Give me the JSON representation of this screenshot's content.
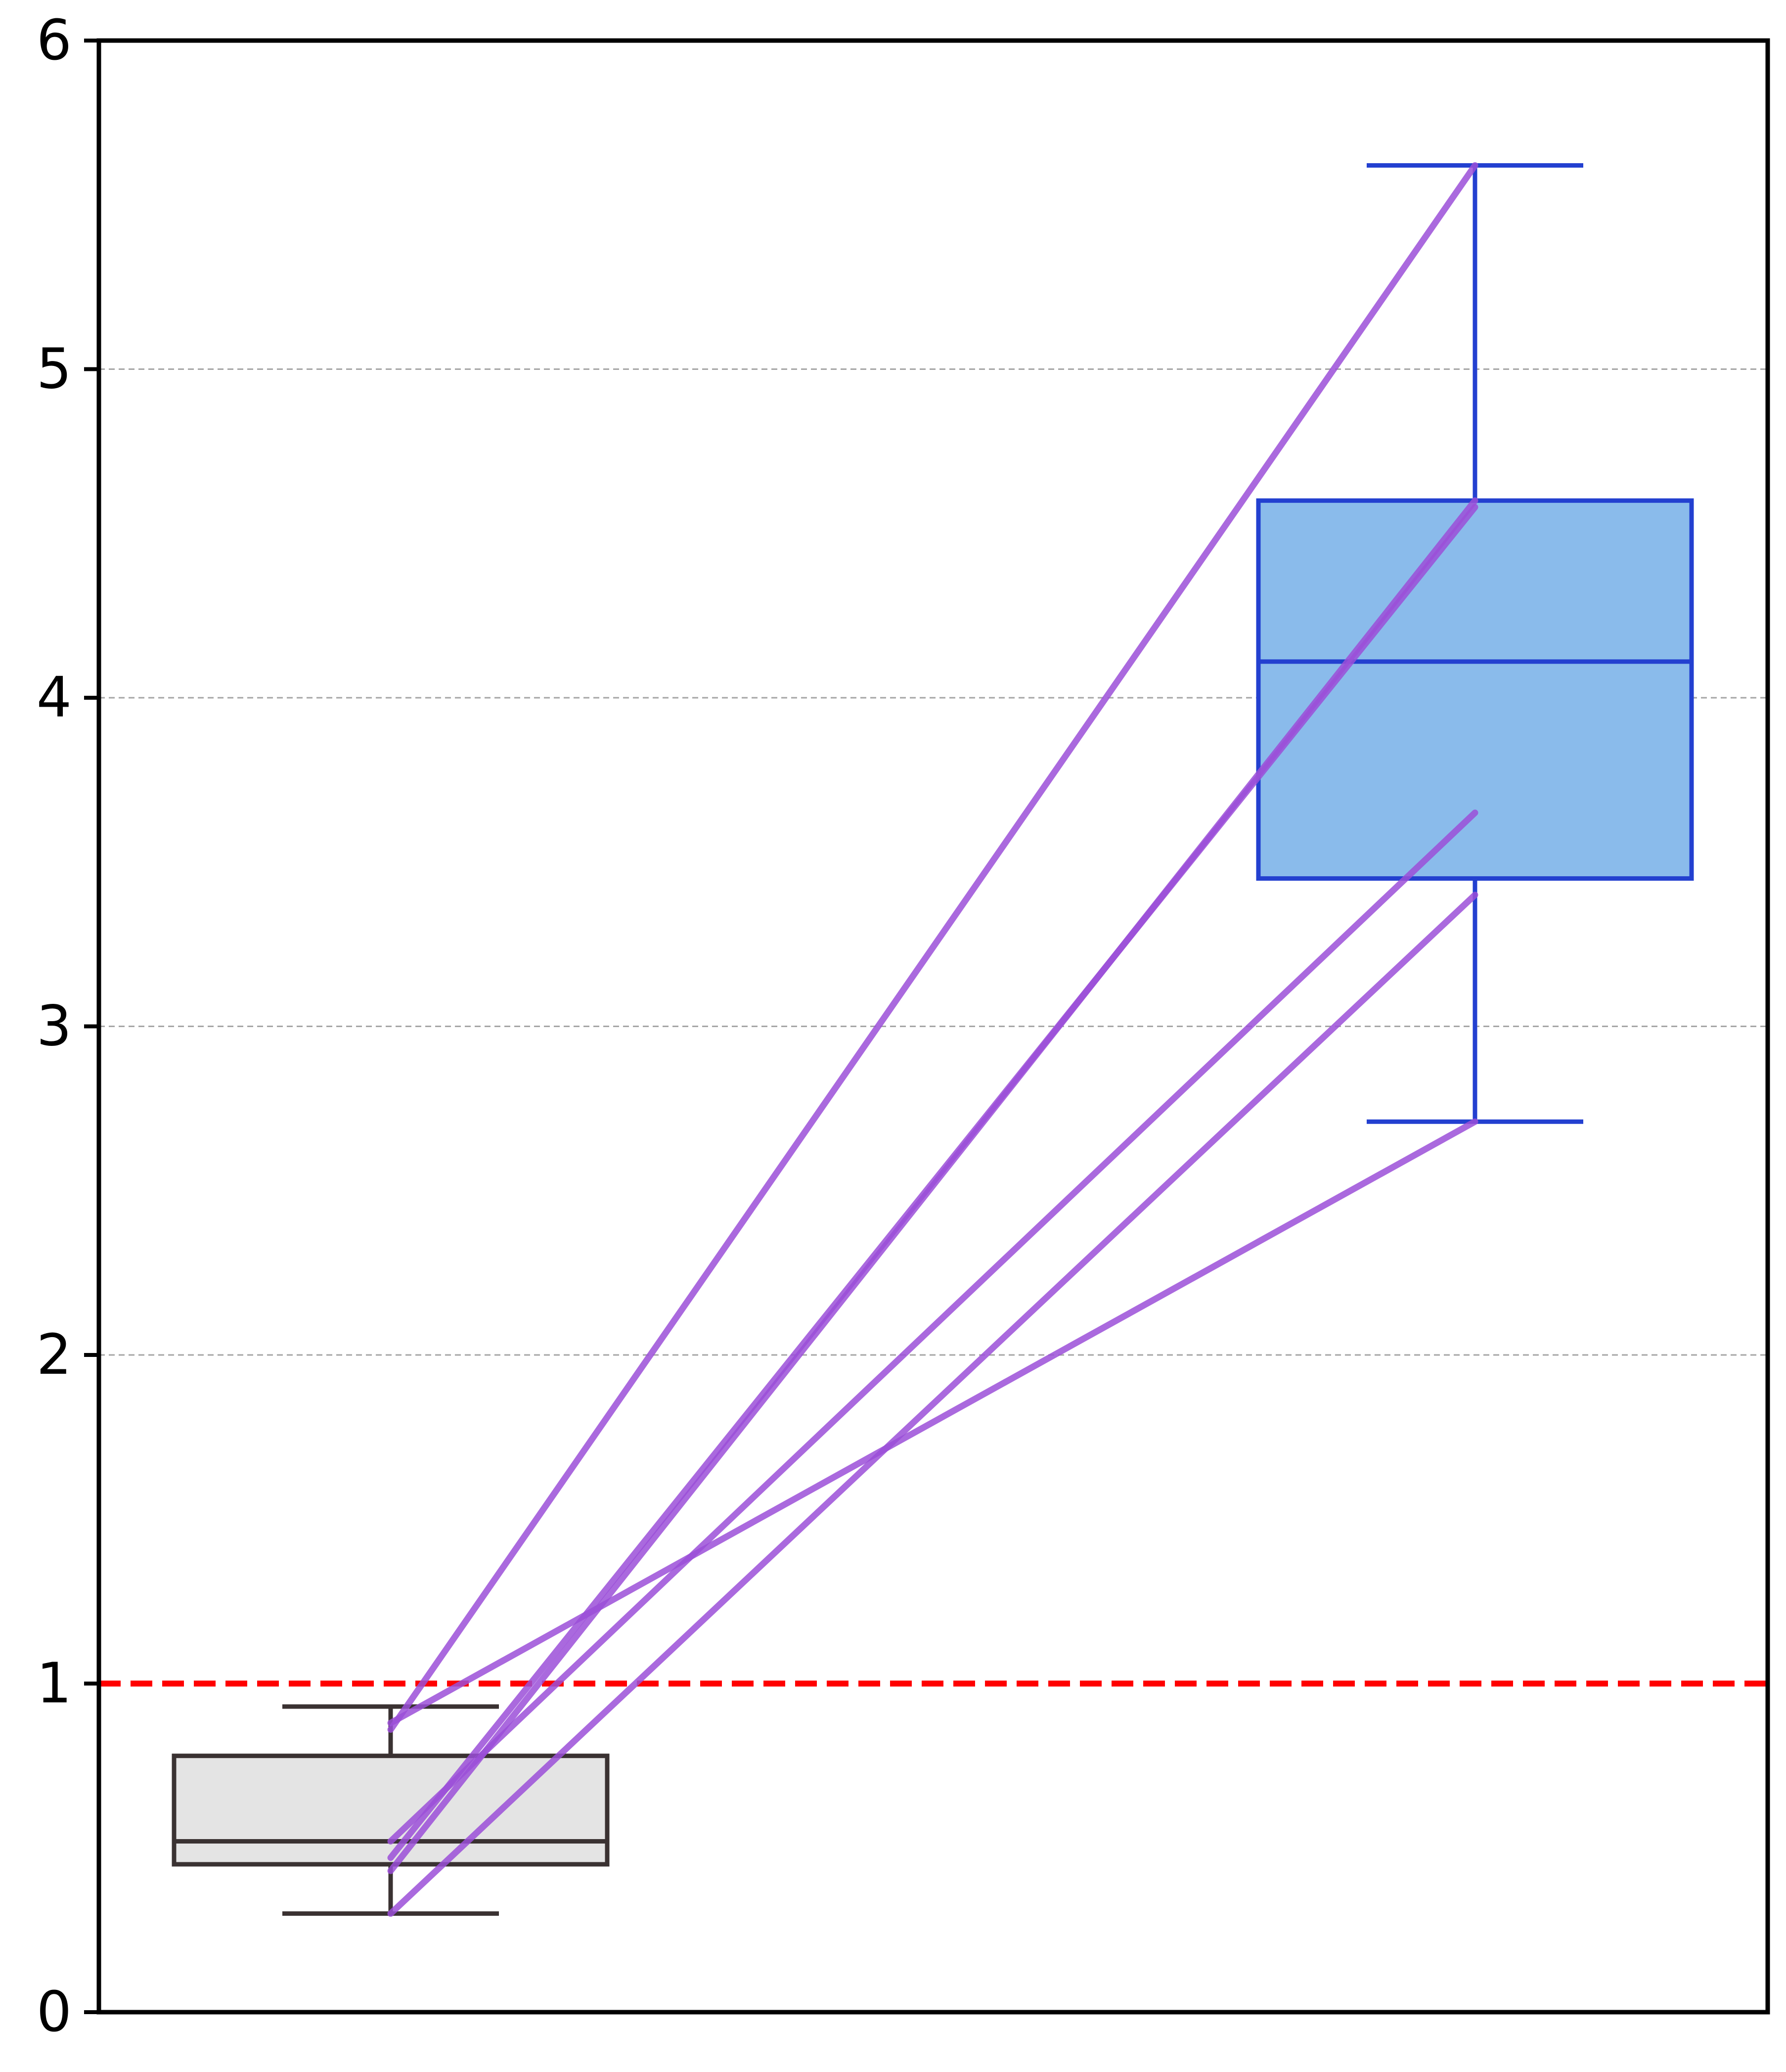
{
  "chart_data": {
    "type": "box",
    "title": "",
    "xlabel": "",
    "ylabel": "",
    "ylim": [
      0,
      6
    ],
    "yticks": [
      0,
      1,
      2,
      3,
      4,
      5,
      6
    ],
    "grid": "y-dashed",
    "legend": "none",
    "reference_line": {
      "y": 1.0,
      "style": "dashed",
      "color": "#ff0000"
    },
    "boxes": [
      {
        "position": 1,
        "whisker_low": 0.3,
        "q1": 0.45,
        "median": 0.52,
        "q3": 0.78,
        "whisker_high": 0.93,
        "fill": "#e4e4e4",
        "stroke": "#3a3232"
      },
      {
        "position": 2,
        "whisker_low": 2.71,
        "q1": 3.45,
        "median": 4.11,
        "q3": 4.6,
        "whisker_high": 5.62,
        "fill": "#8abbeb",
        "stroke": "#2340d0"
      }
    ],
    "paired_lines": {
      "color": "#9b4fd8",
      "pairs": [
        [
          0.86,
          5.62
        ],
        [
          0.43,
          4.6
        ],
        [
          0.47,
          4.58
        ],
        [
          0.52,
          3.65
        ],
        [
          0.3,
          3.4
        ],
        [
          0.88,
          2.71
        ]
      ]
    }
  }
}
